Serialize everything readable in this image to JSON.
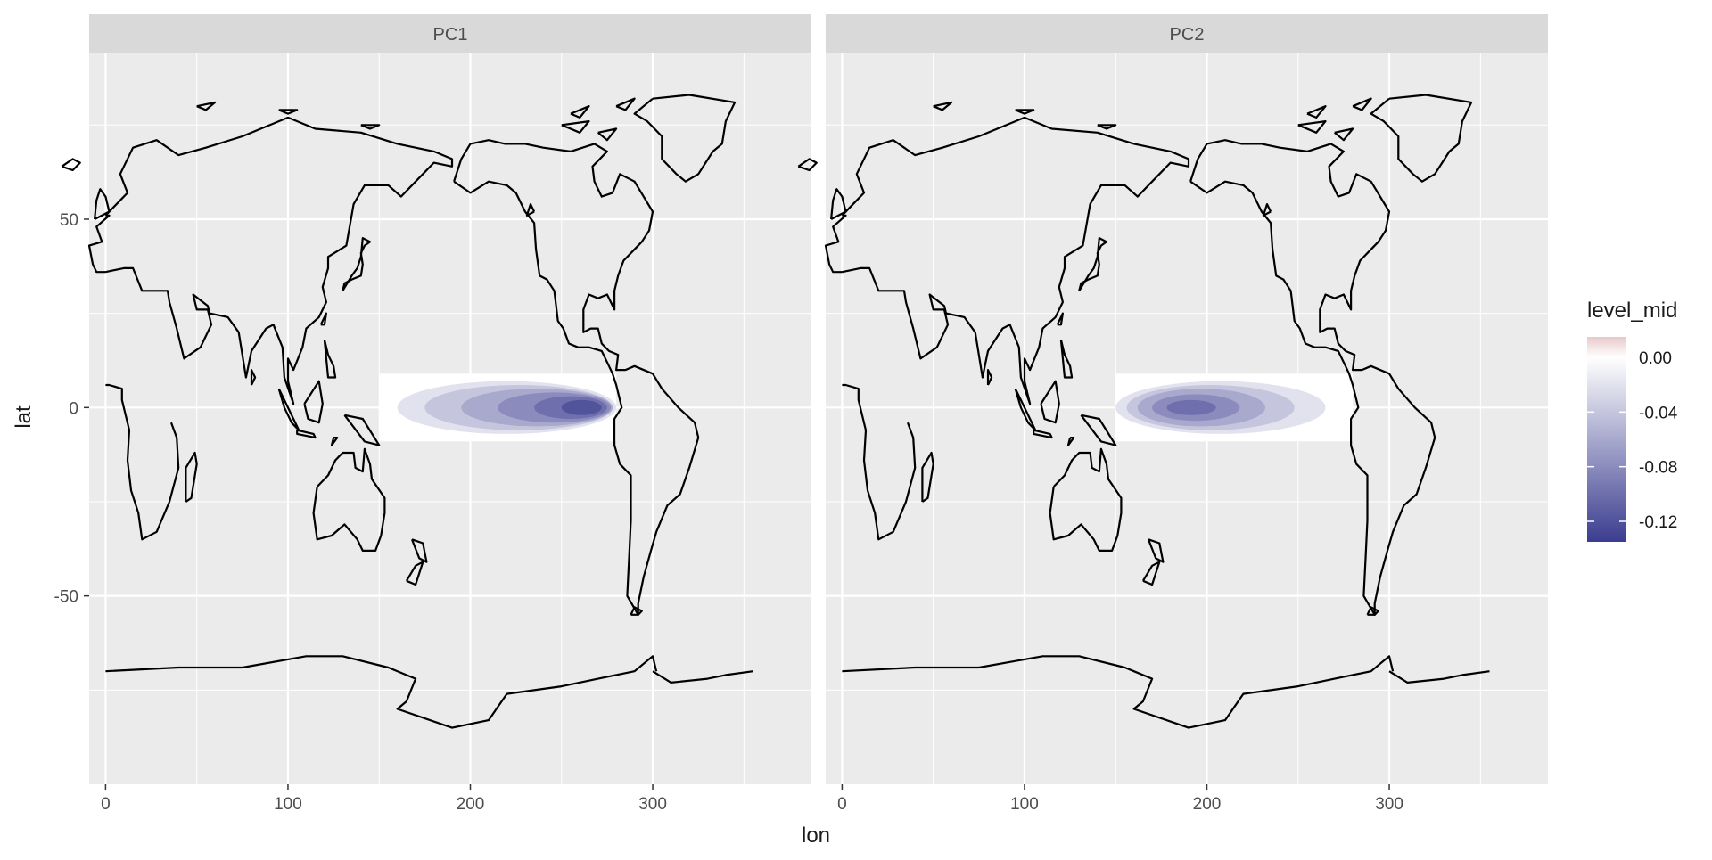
{
  "colors": {
    "panel_bg": "#ebebeb",
    "strip_bg": "#d9d9d9",
    "grid": "#ffffff",
    "coast": "#000000",
    "fill_low": "#3b3d8f",
    "fill_mid": "#ffffff",
    "fill_high": "#e8c9c9",
    "text": "#1a1a1a",
    "tick_text": "#4d4d4d"
  },
  "chart_data": {
    "type": "heatmap",
    "facets": [
      "PC1",
      "PC2"
    ],
    "xlabel": "lon",
    "ylabel": "lat",
    "x_ticks": [
      0,
      100,
      200,
      300
    ],
    "x_tick_labels": [
      "0",
      "100",
      "200",
      "300"
    ],
    "y_ticks": [
      50,
      0,
      -50
    ],
    "y_tick_labels": [
      "50",
      "0",
      "-50"
    ],
    "xlim": [
      -9,
      387
    ],
    "ylim": [
      -100,
      94
    ],
    "field_lon_range": [
      150,
      280
    ],
    "field_lat_range": [
      -9,
      9
    ],
    "legend": {
      "title": "level_mid",
      "position": "right",
      "labels": [
        "0.00",
        "-0.04",
        "-0.08",
        "-0.12"
      ],
      "values": [
        0.0,
        -0.04,
        -0.08,
        -0.12
      ],
      "range": [
        -0.135,
        0.015
      ]
    },
    "contours": {
      "PC1": [
        {
          "lon_min": 160,
          "lon_max": 280,
          "lat_min": -7,
          "lat_max": 7,
          "level_mid": -0.02
        },
        {
          "lon_min": 175,
          "lon_max": 278,
          "lat_min": -6,
          "lat_max": 6,
          "level_mid": -0.04
        },
        {
          "lon_min": 195,
          "lon_max": 278,
          "lat_min": -5,
          "lat_max": 5,
          "level_mid": -0.06
        },
        {
          "lon_min": 215,
          "lon_max": 277,
          "lat_min": -4,
          "lat_max": 4,
          "level_mid": -0.08
        },
        {
          "lon_min": 235,
          "lon_max": 275,
          "lat_min": -3,
          "lat_max": 3,
          "level_mid": -0.1
        },
        {
          "lon_min": 250,
          "lon_max": 272,
          "lat_min": -2,
          "lat_max": 2,
          "level_mid": -0.12
        }
      ],
      "PC2": [
        {
          "lon_min": 150,
          "lon_max": 265,
          "lat_min": -7,
          "lat_max": 7,
          "level_mid": -0.02
        },
        {
          "lon_min": 156,
          "lon_max": 248,
          "lat_min": -6,
          "lat_max": 6,
          "level_mid": -0.04
        },
        {
          "lon_min": 162,
          "lon_max": 232,
          "lat_min": -5,
          "lat_max": 5,
          "level_mid": -0.06
        },
        {
          "lon_min": 170,
          "lon_max": 218,
          "lat_min": -3.5,
          "lat_max": 3.5,
          "level_mid": -0.08
        },
        {
          "lon_min": 178,
          "lon_max": 205,
          "lat_min": -2,
          "lat_max": 2,
          "level_mid": -0.1
        }
      ]
    },
    "coastlines": [
      [
        [
          0,
          51
        ],
        [
          8,
          55
        ],
        [
          12,
          57
        ],
        [
          8,
          62
        ],
        [
          15,
          69
        ],
        [
          28,
          71
        ],
        [
          40,
          67
        ],
        [
          55,
          69
        ],
        [
          75,
          72
        ],
        [
          100,
          77
        ],
        [
          115,
          74
        ],
        [
          140,
          73
        ],
        [
          160,
          70
        ],
        [
          180,
          68
        ],
        [
          190,
          66
        ],
        [
          190,
          64
        ],
        [
          180,
          65
        ],
        [
          170,
          60
        ],
        [
          162,
          56
        ],
        [
          155,
          59
        ],
        [
          142,
          59
        ],
        [
          136,
          54
        ],
        [
          132,
          43
        ],
        [
          122,
          40
        ],
        [
          122,
          37
        ],
        [
          119,
          32
        ],
        [
          121,
          28
        ],
        [
          117,
          24
        ],
        [
          110,
          21
        ],
        [
          108,
          16
        ],
        [
          103,
          10
        ],
        [
          100,
          13
        ],
        [
          100,
          7
        ],
        [
          103,
          1
        ],
        [
          98,
          8
        ],
        [
          97,
          16
        ],
        [
          92,
          22
        ],
        [
          88,
          21
        ],
        [
          80,
          15
        ],
        [
          77,
          8
        ],
        [
          73,
          20
        ],
        [
          67,
          24
        ],
        [
          57,
          25
        ],
        [
          56,
          27
        ],
        [
          48,
          30
        ],
        [
          50,
          26
        ],
        [
          56,
          26
        ],
        [
          58,
          22
        ],
        [
          52,
          16
        ],
        [
          43,
          13
        ],
        [
          39,
          21
        ],
        [
          35,
          28
        ],
        [
          34,
          31
        ],
        [
          28,
          31
        ],
        [
          20,
          31
        ],
        [
          15,
          37
        ],
        [
          10,
          37
        ],
        [
          0,
          36
        ]
      ],
      [
        [
          0,
          36
        ],
        [
          -5,
          36
        ],
        [
          -7,
          38
        ],
        [
          -9,
          43
        ],
        [
          -2,
          44
        ],
        [
          -5,
          48
        ],
        [
          2,
          51
        ],
        [
          0,
          51
        ]
      ],
      [
        [
          36,
          -4
        ],
        [
          39,
          -8
        ],
        [
          40,
          -16
        ],
        [
          35,
          -25
        ],
        [
          28,
          -33
        ],
        [
          20,
          -35
        ],
        [
          18,
          -28
        ],
        [
          14,
          -22
        ],
        [
          12,
          -14
        ],
        [
          13,
          -6
        ],
        [
          9,
          2
        ],
        [
          9,
          5
        ],
        [
          2,
          6
        ],
        [
          0,
          6
        ]
      ],
      [
        [
          116,
          -21
        ],
        [
          114,
          -28
        ],
        [
          116,
          -35
        ],
        [
          124,
          -34
        ],
        [
          131,
          -31
        ],
        [
          138,
          -35
        ],
        [
          141,
          -38
        ],
        [
          148,
          -38
        ],
        [
          151,
          -34
        ],
        [
          153,
          -28
        ],
        [
          153,
          -24
        ],
        [
          146,
          -19
        ],
        [
          145,
          -15
        ],
        [
          142,
          -11
        ],
        [
          141,
          -17
        ],
        [
          137,
          -16
        ],
        [
          136,
          -12
        ],
        [
          130,
          -12
        ],
        [
          126,
          -14
        ],
        [
          122,
          -18
        ],
        [
          116,
          -21
        ]
      ],
      [
        [
          191,
          60
        ],
        [
          200,
          57
        ],
        [
          210,
          60
        ],
        [
          220,
          59
        ],
        [
          225,
          57
        ],
        [
          230,
          52
        ],
        [
          235,
          49
        ],
        [
          236,
          42
        ],
        [
          238,
          35
        ],
        [
          242,
          34
        ],
        [
          246,
          31
        ],
        [
          248,
          23
        ],
        [
          251,
          21
        ],
        [
          254,
          17
        ],
        [
          259,
          16
        ],
        [
          265,
          16
        ],
        [
          272,
          15
        ],
        [
          276,
          11
        ],
        [
          278,
          9
        ],
        [
          280,
          6
        ],
        [
          283,
          0
        ],
        [
          279,
          -3
        ],
        [
          279,
          -10
        ],
        [
          282,
          -15
        ],
        [
          288,
          -18
        ],
        [
          288,
          -30
        ],
        [
          287,
          -40
        ],
        [
          286,
          -50
        ],
        [
          292,
          -55
        ],
        [
          292,
          -52
        ],
        [
          295,
          -45
        ],
        [
          299,
          -38
        ],
        [
          302,
          -33
        ],
        [
          308,
          -26
        ],
        [
          315,
          -23
        ],
        [
          320,
          -16
        ],
        [
          325,
          -8
        ],
        [
          323,
          -4
        ],
        [
          314,
          0
        ],
        [
          305,
          5
        ],
        [
          300,
          9
        ],
        [
          290,
          11
        ],
        [
          285,
          10
        ],
        [
          280,
          10
        ],
        [
          281,
          14
        ],
        [
          276,
          15
        ],
        [
          272,
          17
        ],
        [
          270,
          21
        ],
        [
          266,
          21
        ],
        [
          262,
          20
        ],
        [
          262,
          26
        ],
        [
          265,
          30
        ],
        [
          270,
          29
        ],
        [
          275,
          30
        ],
        [
          279,
          26
        ],
        [
          279,
          31
        ],
        [
          281,
          35
        ],
        [
          284,
          39
        ],
        [
          290,
          42
        ],
        [
          294,
          44
        ],
        [
          298,
          47
        ],
        [
          300,
          52
        ],
        [
          295,
          56
        ],
        [
          290,
          60
        ],
        [
          282,
          62
        ],
        [
          278,
          57
        ],
        [
          272,
          56
        ],
        [
          268,
          60
        ],
        [
          267,
          64
        ],
        [
          275,
          68
        ],
        [
          268,
          70
        ],
        [
          255,
          68
        ],
        [
          240,
          69
        ],
        [
          230,
          70
        ],
        [
          219,
          70
        ],
        [
          210,
          71
        ],
        [
          200,
          70
        ],
        [
          195,
          66
        ],
        [
          191,
          60
        ]
      ],
      [
        [
          300,
          82
        ],
        [
          320,
          83
        ],
        [
          345,
          81
        ],
        [
          340,
          76
        ],
        [
          338,
          70
        ],
        [
          333,
          68
        ],
        [
          325,
          62
        ],
        [
          318,
          60
        ],
        [
          313,
          62
        ],
        [
          305,
          66
        ],
        [
          305,
          72
        ],
        [
          297,
          76
        ],
        [
          290,
          78
        ],
        [
          300,
          82
        ]
      ],
      [
        [
          300,
          -70
        ],
        [
          310,
          -73
        ],
        [
          330,
          -72
        ],
        [
          340,
          -71
        ],
        [
          355,
          -70
        ],
        [
          0,
          -70
        ],
        [
          40,
          -69
        ],
        [
          75,
          -69
        ],
        [
          110,
          -66
        ],
        [
          130,
          -66
        ],
        [
          155,
          -69
        ],
        [
          170,
          -72
        ],
        [
          165,
          -78
        ],
        [
          160,
          -80
        ],
        [
          190,
          -85
        ],
        [
          210,
          -83
        ],
        [
          220,
          -76
        ],
        [
          250,
          -74
        ],
        [
          270,
          -72
        ],
        [
          290,
          -70
        ],
        [
          300,
          -66
        ],
        [
          302,
          -70
        ]
      ],
      [
        [
          168,
          -35
        ],
        [
          172,
          -40
        ],
        [
          176,
          -41
        ],
        [
          174,
          -36
        ],
        [
          168,
          -35
        ]
      ],
      [
        [
          165,
          -46
        ],
        [
          170,
          -47
        ],
        [
          174,
          -41
        ],
        [
          170,
          -42
        ],
        [
          165,
          -46
        ]
      ],
      [
        [
          130,
          31
        ],
        [
          131,
          33
        ],
        [
          135,
          34
        ],
        [
          140,
          35
        ],
        [
          141,
          38
        ],
        [
          140,
          41
        ],
        [
          142,
          43
        ],
        [
          145,
          44
        ],
        [
          141,
          45
        ],
        [
          140,
          40
        ],
        [
          138,
          37
        ],
        [
          135,
          35
        ],
        [
          130,
          31
        ]
      ],
      [
        [
          -6,
          50
        ],
        [
          -5,
          55
        ],
        [
          -3,
          58
        ],
        [
          0,
          56
        ],
        [
          2,
          52
        ],
        [
          -6,
          50
        ]
      ],
      [
        [
          44,
          -25
        ],
        [
          47,
          -24
        ],
        [
          50,
          -15
        ],
        [
          49,
          -12
        ],
        [
          44,
          -16
        ],
        [
          44,
          -25
        ]
      ],
      [
        [
          95,
          5
        ],
        [
          98,
          2
        ],
        [
          103,
          -3
        ],
        [
          106,
          -6
        ],
        [
          102,
          -4
        ],
        [
          98,
          0
        ],
        [
          95,
          5
        ]
      ],
      [
        [
          109,
          1
        ],
        [
          111,
          -3
        ],
        [
          117,
          -4
        ],
        [
          119,
          1
        ],
        [
          117,
          7
        ],
        [
          109,
          1
        ]
      ],
      [
        [
          131,
          -2
        ],
        [
          141,
          -3
        ],
        [
          150,
          -10
        ],
        [
          142,
          -9
        ],
        [
          131,
          -2
        ]
      ],
      [
        [
          120,
          18
        ],
        [
          122,
          14
        ],
        [
          125,
          11
        ],
        [
          126,
          8
        ],
        [
          122,
          8
        ],
        [
          120,
          18
        ]
      ],
      [
        [
          -24,
          64
        ],
        [
          -18,
          66
        ],
        [
          -14,
          65
        ],
        [
          -18,
          63
        ],
        [
          -24,
          64
        ]
      ],
      [
        [
          235,
          52
        ],
        [
          233,
          54
        ],
        [
          231,
          51
        ],
        [
          235,
          52
        ]
      ],
      [
        [
          80,
          6
        ],
        [
          82,
          8
        ],
        [
          80,
          10
        ],
        [
          80,
          6
        ]
      ],
      [
        [
          118,
          22
        ],
        [
          121,
          25
        ],
        [
          120,
          22
        ],
        [
          118,
          22
        ]
      ],
      [
        [
          105,
          -6
        ],
        [
          114,
          -7
        ],
        [
          115,
          -8
        ],
        [
          105,
          -7
        ],
        [
          105,
          -6
        ]
      ],
      [
        [
          288,
          -55
        ],
        [
          292,
          -55
        ],
        [
          294,
          -54
        ],
        [
          290,
          -53
        ],
        [
          288,
          -55
        ]
      ],
      [
        [
          125,
          -8
        ],
        [
          127,
          -8
        ],
        [
          124,
          -10
        ],
        [
          125,
          -8
        ]
      ],
      [
        [
          50,
          80
        ],
        [
          60,
          81
        ],
        [
          55,
          79
        ],
        [
          50,
          80
        ]
      ],
      [
        [
          95,
          79
        ],
        [
          105,
          79
        ],
        [
          100,
          78
        ],
        [
          95,
          79
        ]
      ],
      [
        [
          140,
          75
        ],
        [
          150,
          75
        ],
        [
          145,
          74
        ],
        [
          140,
          75
        ]
      ],
      [
        [
          250,
          75
        ],
        [
          265,
          76
        ],
        [
          260,
          73
        ],
        [
          250,
          75
        ]
      ],
      [
        [
          270,
          73
        ],
        [
          280,
          74
        ],
        [
          275,
          71
        ],
        [
          270,
          73
        ]
      ],
      [
        [
          280,
          80
        ],
        [
          290,
          82
        ],
        [
          285,
          79
        ],
        [
          280,
          80
        ]
      ],
      [
        [
          255,
          78
        ],
        [
          265,
          80
        ],
        [
          260,
          77
        ],
        [
          255,
          78
        ]
      ]
    ]
  }
}
